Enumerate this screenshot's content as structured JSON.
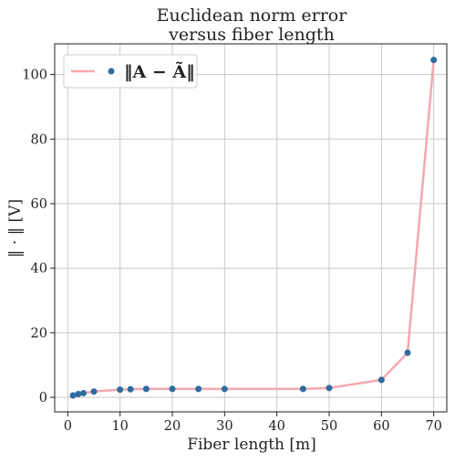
{
  "chart_data": {
    "type": "line",
    "title": [
      "Euclidean norm error",
      "versus fiber length"
    ],
    "xlabel": "Fiber length [m]",
    "ylabel": "‖ · ‖  [V]",
    "xlim": [
      -2.5,
      72.5
    ],
    "ylim": [
      -4.5,
      109.5
    ],
    "xticks": [
      0,
      10,
      20,
      30,
      40,
      50,
      60,
      70
    ],
    "yticks": [
      0,
      20,
      40,
      60,
      80,
      100
    ],
    "grid": true,
    "legend": {
      "position": "top-left",
      "label": "‖A − Ã‖"
    },
    "series": [
      {
        "x": [
          1,
          2,
          3,
          5,
          10,
          12,
          15,
          20,
          25,
          30,
          45,
          50,
          60,
          65,
          70
        ],
        "y": [
          0.6,
          1.0,
          1.3,
          1.8,
          2.4,
          2.5,
          2.6,
          2.6,
          2.6,
          2.6,
          2.6,
          2.9,
          5.4,
          13.8,
          104.5
        ],
        "line_color": "#f4a9ad",
        "marker_color": "#2e6c9e"
      }
    ]
  }
}
